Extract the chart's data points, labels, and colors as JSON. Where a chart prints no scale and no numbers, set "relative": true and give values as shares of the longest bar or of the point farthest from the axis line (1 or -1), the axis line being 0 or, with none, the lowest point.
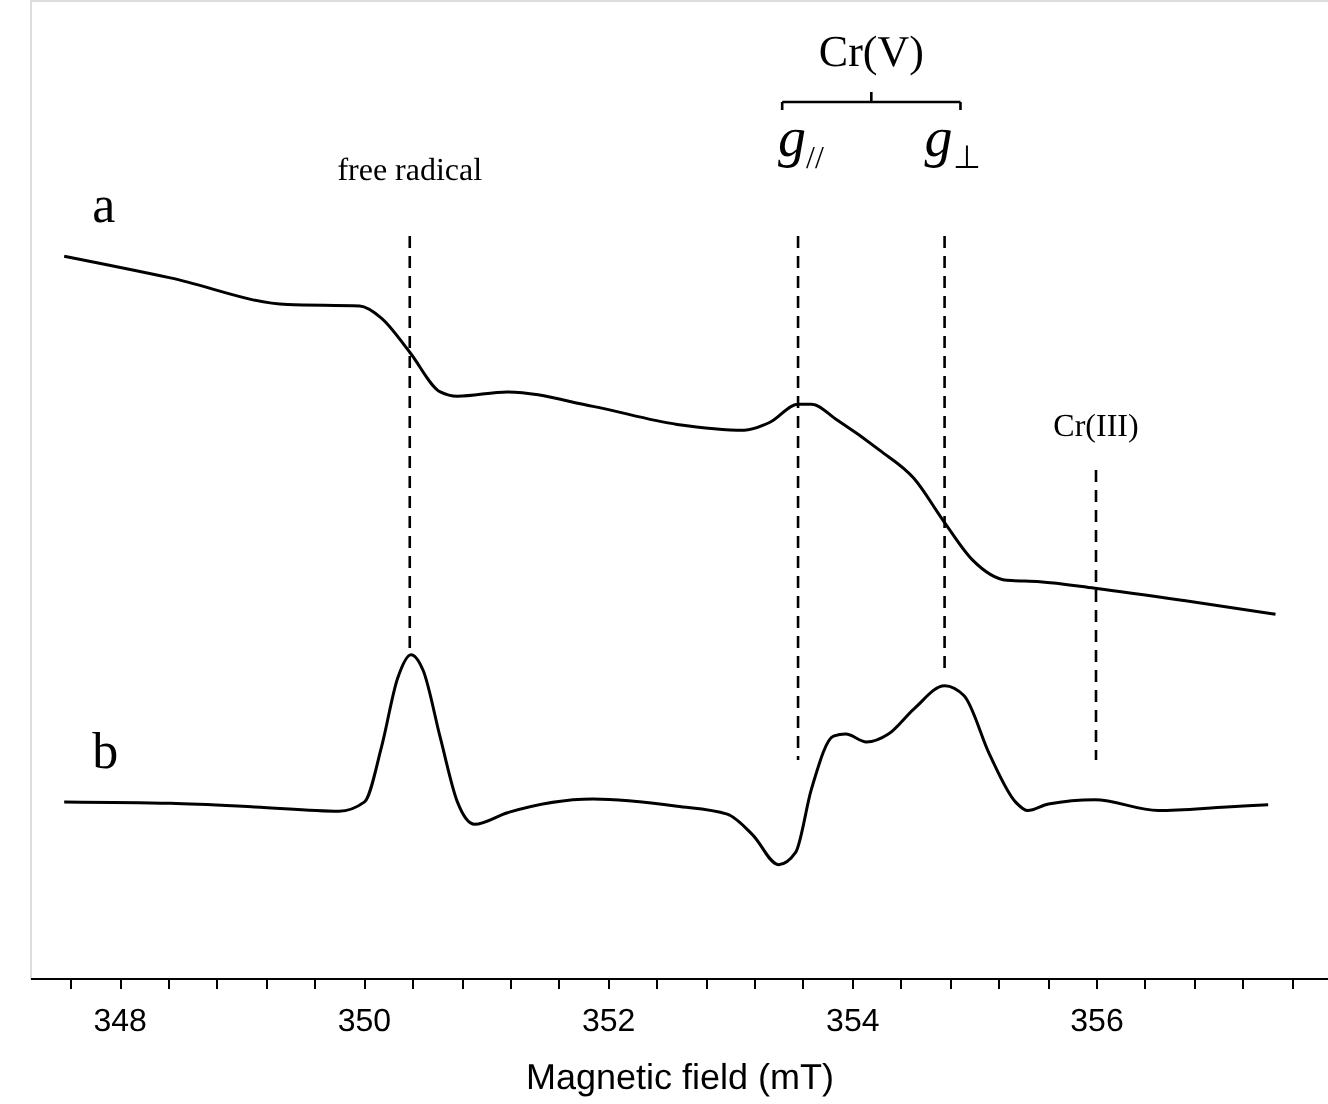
{
  "chart_data": {
    "type": "line",
    "relative": true,
    "xlabel": "Magnetic field (mT)",
    "xlim": [
      347.27,
      357.9
    ],
    "xticks": [
      {
        "value": 347.6,
        "label": null
      },
      348,
      {
        "value": 348.4,
        "label": null
      },
      {
        "value": 348.8,
        "label": null
      },
      {
        "value": 349.2,
        "label": null
      },
      {
        "value": 349.6,
        "label": null
      },
      350,
      {
        "value": 350.4,
        "label": null
      },
      {
        "value": 350.8,
        "label": null
      },
      {
        "value": 351.2,
        "label": null
      },
      {
        "value": 351.6,
        "label": null
      },
      352,
      {
        "value": 352.4,
        "label": null
      },
      {
        "value": 352.8,
        "label": null
      },
      {
        "value": 353.2,
        "label": null
      },
      {
        "value": 353.6,
        "label": null
      },
      354,
      {
        "value": 354.4,
        "label": null
      },
      {
        "value": 354.8,
        "label": null
      },
      {
        "value": 355.2,
        "label": null
      },
      {
        "value": 355.6,
        "label": null
      },
      356,
      {
        "value": 356.4,
        "label": null
      },
      {
        "value": 356.8,
        "label": null
      },
      {
        "value": 357.2,
        "label": null
      },
      {
        "value": 357.6,
        "label": null
      }
    ],
    "tick_labels": "x",
    "grid": false,
    "legend": false,
    "marker": "none",
    "line_style": "solid",
    "series": [
      {
        "name": "a",
        "color": "#000000",
        "x": [
          347.55,
          348.42,
          349.38,
          349.97,
          350.15,
          350.38,
          350.63,
          350.77,
          351.18,
          351.88,
          352.57,
          353.12,
          353.33,
          353.56,
          353.67,
          353.88,
          354.23,
          354.51,
          354.76,
          354.99,
          355.27,
          355.54,
          355.99,
          356.72,
          357.47
        ],
        "values": [
          1.0,
          0.97,
          0.933,
          0.931,
          0.914,
          0.867,
          0.812,
          0.806,
          0.812,
          0.792,
          0.767,
          0.759,
          0.77,
          0.795,
          0.795,
          0.773,
          0.731,
          0.692,
          0.631,
          0.579,
          0.551,
          0.549,
          0.54,
          0.523,
          0.504
        ]
      },
      {
        "name": "b",
        "color": "#000000",
        "x": [
          347.55,
          348.42,
          349.11,
          349.8,
          350.01,
          350.15,
          350.28,
          350.39,
          350.49,
          350.63,
          350.77,
          350.91,
          351.18,
          351.88,
          352.57,
          352.98,
          353.19,
          353.4,
          353.54,
          353.67,
          353.85,
          353.95,
          354.12,
          354.3,
          354.51,
          354.76,
          354.92,
          355.13,
          355.34,
          355.44,
          355.61,
          355.99,
          356.51,
          357.07,
          357.41
        ],
        "values": [
          0.244,
          0.242,
          0.237,
          0.231,
          0.244,
          0.321,
          0.415,
          0.448,
          0.426,
          0.333,
          0.244,
          0.213,
          0.229,
          0.248,
          0.238,
          0.227,
          0.198,
          0.157,
          0.174,
          0.262,
          0.335,
          0.338,
          0.327,
          0.338,
          0.373,
          0.405,
          0.391,
          0.309,
          0.244,
          0.232,
          0.241,
          0.247,
          0.232,
          0.237,
          0.24
        ]
      }
    ],
    "ref_lines": [
      {
        "axis": "x",
        "value": 350.38,
        "label": "free radical",
        "line_style": "dashed",
        "color": "#000000"
      },
      {
        "axis": "x",
        "value": 353.56,
        "label": "g$_{//}$",
        "line_style": "dashed",
        "color": "#000000"
      },
      {
        "axis": "x",
        "value": 354.76,
        "label": "g$_{⊥}$",
        "line_style": "dashed",
        "color": "#000000"
      },
      {
        "axis": "x",
        "value": 356.0,
        "label": "Cr(III)",
        "line_style": "dashed",
        "color": "#000000"
      }
    ],
    "annotations": [
      "Cr(V)"
    ]
  }
}
